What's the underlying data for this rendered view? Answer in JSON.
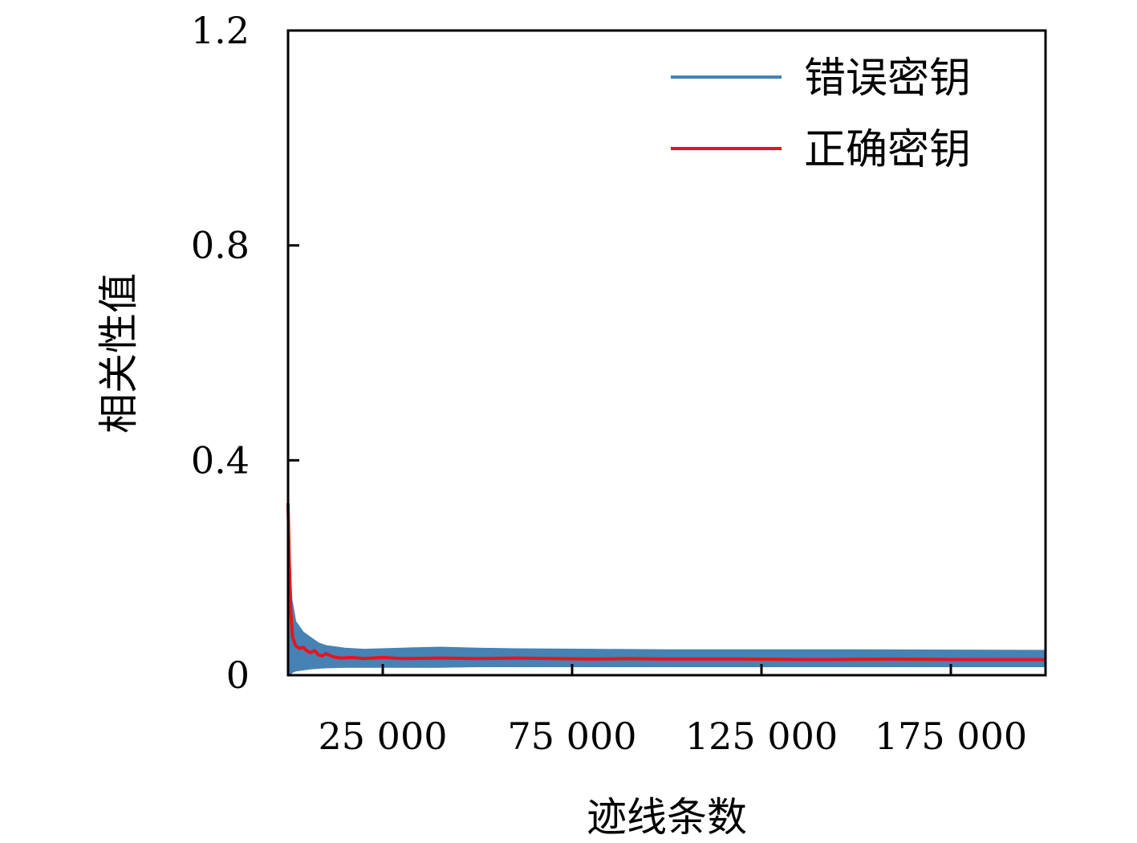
{
  "chart_data": {
    "type": "line",
    "xlabel": "迹线条数",
    "ylabel": "相关性值",
    "xlim": [
      0,
      200000
    ],
    "ylim": [
      0,
      1.2
    ],
    "x_ticks": [
      25000,
      75000,
      125000,
      175000
    ],
    "x_tick_labels": [
      "25 000",
      "75 000",
      "125 000",
      "175 000"
    ],
    "y_ticks": [
      0,
      0.4,
      0.8,
      1.2
    ],
    "y_tick_labels": [
      "0",
      "0.4",
      "0.8",
      "1.2"
    ],
    "legend_position": "top-right",
    "grid": false,
    "series": [
      {
        "name": "错误密钥",
        "color": "#4682b4",
        "style": "band",
        "x": [
          0,
          500,
          1000,
          2000,
          4000,
          6000,
          8000,
          10000,
          15000,
          20000,
          30000,
          40000,
          50000,
          60000,
          80000,
          100000,
          150000,
          200000
        ],
        "upper": [
          0.3,
          0.2,
          0.14,
          0.1,
          0.08,
          0.07,
          0.06,
          0.055,
          0.05,
          0.048,
          0.05,
          0.052,
          0.05,
          0.049,
          0.048,
          0.047,
          0.047,
          0.046
        ],
        "lower": [
          0.0,
          0.0,
          0.005,
          0.008,
          0.01,
          0.012,
          0.013,
          0.014,
          0.015,
          0.015,
          0.015,
          0.015,
          0.016,
          0.016,
          0.016,
          0.016,
          0.016,
          0.016
        ]
      },
      {
        "name": "正确密钥",
        "color": "#e8141c",
        "style": "line",
        "x": [
          0,
          300,
          700,
          1200,
          2000,
          3000,
          4000,
          5000,
          6000,
          7000,
          8000,
          9000,
          10000,
          12000,
          14000,
          17000,
          20000,
          25000,
          30000,
          40000,
          50000,
          60000,
          70000,
          80000,
          90000,
          100000,
          120000,
          140000,
          160000,
          180000,
          200000
        ],
        "y": [
          0.32,
          0.22,
          0.12,
          0.07,
          0.055,
          0.05,
          0.052,
          0.045,
          0.042,
          0.046,
          0.038,
          0.036,
          0.04,
          0.034,
          0.032,
          0.033,
          0.031,
          0.033,
          0.031,
          0.032,
          0.031,
          0.032,
          0.031,
          0.03,
          0.031,
          0.03,
          0.03,
          0.029,
          0.03,
          0.029,
          0.029
        ]
      }
    ]
  }
}
